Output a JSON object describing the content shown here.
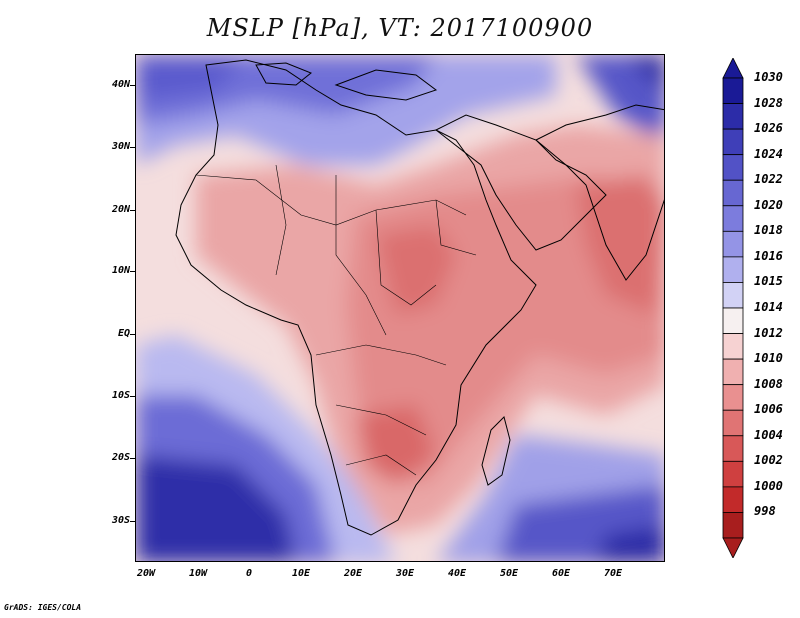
{
  "title": "MSLP [hPa], VT: 2017100900",
  "footer": "GrADS: IGES/COLA",
  "axes": {
    "lat_labels": [
      "40N",
      "30N",
      "20N",
      "10N",
      "EQ",
      "10S",
      "20S",
      "30S"
    ],
    "lon_labels": [
      "20W",
      "10W",
      "0",
      "10E",
      "20E",
      "30E",
      "40E",
      "50E",
      "60E",
      "70E"
    ]
  },
  "colorbar": {
    "levels": [
      "1030",
      "1028",
      "1026",
      "1024",
      "1022",
      "1020",
      "1018",
      "1016",
      "1015",
      "1014",
      "1012",
      "1010",
      "1008",
      "1006",
      "1004",
      "1002",
      "1000",
      "998"
    ],
    "colors": [
      "#1a1a96",
      "#2c2ca8",
      "#3f3fb8",
      "#5252c6",
      "#6767d2",
      "#7c7cdd",
      "#9494e6",
      "#b0b0ee",
      "#d2d2f5",
      "#f6f0f0",
      "#f6d2d2",
      "#f0b0b0",
      "#e99090",
      "#e07474",
      "#d85858",
      "#cf4040",
      "#c22a2a",
      "#a81e1e"
    ]
  },
  "map_data": {
    "region": "Africa, Arabia and the western Indian Ocean",
    "lat_range": [
      -36,
      45
    ],
    "lon_range": [
      -22,
      80
    ],
    "field": "Mean sea level pressure (hPa)"
  }
}
